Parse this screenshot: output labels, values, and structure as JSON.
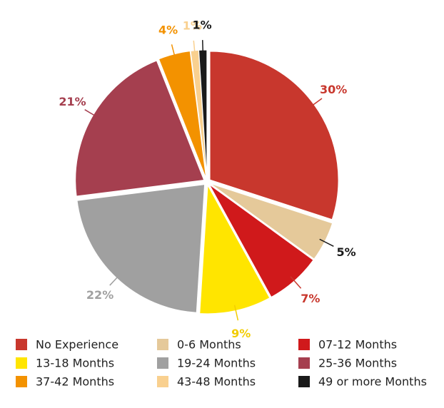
{
  "chart_data": {
    "type": "pie",
    "categories": [
      "No Experience",
      "0-6 Months",
      "07-12 Months",
      "13-18 Months",
      "19-24 Months",
      "25-36 Months",
      "37-42 Months",
      "43-48 Months",
      "49 or more Months"
    ],
    "values": [
      30,
      5,
      7,
      9,
      22,
      21,
      4,
      1,
      1
    ],
    "value_labels": [
      "30%",
      "5%",
      "7%",
      "9%",
      "22%",
      "21%",
      "4%",
      "1%",
      "1%"
    ],
    "colors": [
      "#c8372d",
      "#e5c99a",
      "#d0191b",
      "#ffe500",
      "#a0a0a0",
      "#a53f4f",
      "#f39200",
      "#f9d08f",
      "#1a1a1a"
    ],
    "label_colors": [
      "#c8372d",
      "#1a1a1a",
      "#c8372d",
      "#f2cc00",
      "#a0a0a0",
      "#a53f4f",
      "#f39200",
      "#f9d08f",
      "#1a1a1a"
    ],
    "legend": "bottom"
  }
}
